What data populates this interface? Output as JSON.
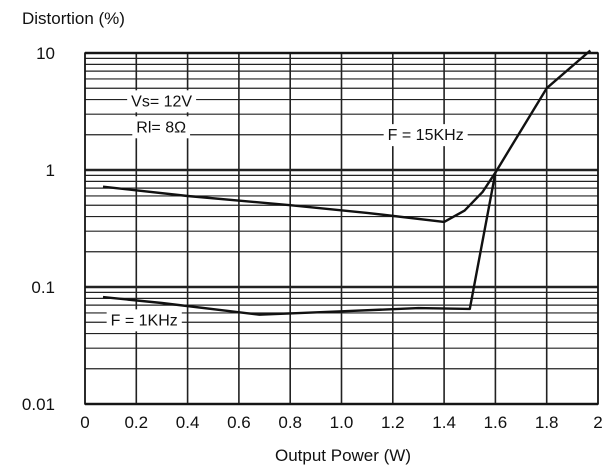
{
  "chart_data": {
    "type": "line",
    "title": "",
    "ylabel": "Distortion (%)",
    "xlabel": "Output Power (W)",
    "x_scale": "linear",
    "y_scale": "log",
    "xlim": [
      0,
      2
    ],
    "ylim": [
      0.01,
      10
    ],
    "grid": true,
    "x_ticks": [
      {
        "value": 0,
        "label": "0"
      },
      {
        "value": 0.2,
        "label": "0.2"
      },
      {
        "value": 0.4,
        "label": "0.4"
      },
      {
        "value": 0.6,
        "label": "0.6"
      },
      {
        "value": 0.8,
        "label": "0.8"
      },
      {
        "value": 1.0,
        "label": "1.0"
      },
      {
        "value": 1.2,
        "label": "1.2"
      },
      {
        "value": 1.4,
        "label": "1.4"
      },
      {
        "value": 1.6,
        "label": "1.6"
      },
      {
        "value": 1.8,
        "label": "1.8"
      },
      {
        "value": 2,
        "label": "2"
      }
    ],
    "y_ticks": [
      {
        "value": 0.01,
        "label": "0.01"
      },
      {
        "value": 0.1,
        "label": "0.1"
      },
      {
        "value": 1,
        "label": "1"
      },
      {
        "value": 10,
        "label": "10"
      }
    ],
    "annotations": [
      {
        "text": "Vs= 12V",
        "x": 0.18,
        "y": 3.5
      },
      {
        "text": "Rl= 8Ω",
        "x": 0.2,
        "y": 2.1
      },
      {
        "text": "F = 15KHz",
        "x": 1.18,
        "y": 1.8
      },
      {
        "text": "F = 1KHz",
        "x": 0.1,
        "y": 0.047
      }
    ],
    "series": [
      {
        "name": "F = 15KHz",
        "x": [
          0.07,
          0.4,
          0.8,
          1.1,
          1.4,
          1.48,
          1.55,
          1.6,
          1.8,
          1.97
        ],
        "y": [
          0.72,
          0.6,
          0.5,
          0.43,
          0.36,
          0.45,
          0.65,
          0.95,
          5.0,
          10.5
        ]
      },
      {
        "name": "F = 1KHz",
        "x": [
          0.07,
          0.3,
          0.68,
          1.0,
          1.3,
          1.5,
          1.6
        ],
        "y": [
          0.082,
          0.073,
          0.058,
          0.062,
          0.066,
          0.065,
          0.95
        ]
      }
    ]
  }
}
